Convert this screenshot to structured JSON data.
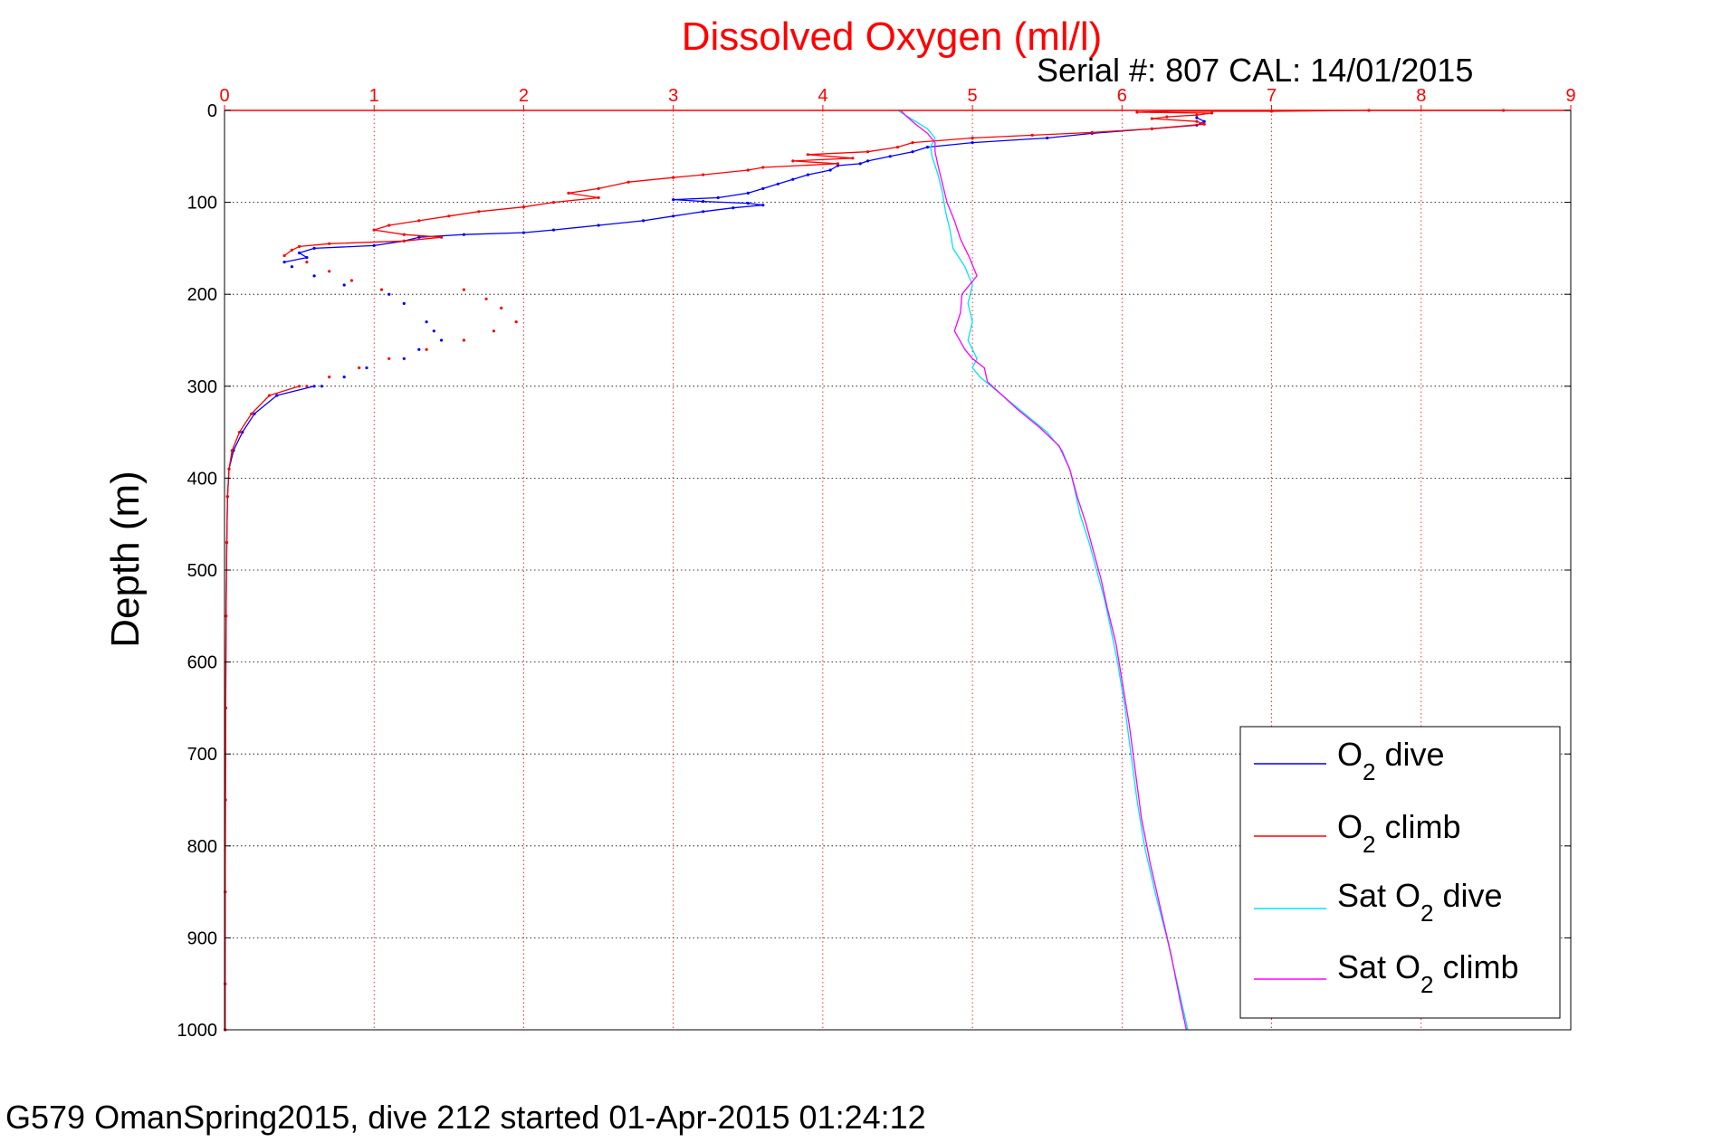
{
  "chart_data": {
    "type": "line",
    "title": "Dissolved Oxygen (ml/l)",
    "subtitle": "Serial #: 807  CAL: 14/01/2015",
    "ylabel": "Depth (m)",
    "xlabel": "",
    "xlim": [
      0,
      9
    ],
    "ylim": [
      0,
      1000
    ],
    "y_reversed": true,
    "x_axis_position": "top",
    "grid": true,
    "legend_position": "bottom-right",
    "x_ticks": [
      "0",
      "1",
      "2",
      "3",
      "4",
      "5",
      "6",
      "7",
      "8",
      "9"
    ],
    "y_ticks": [
      "0",
      "100",
      "200",
      "300",
      "400",
      "500",
      "600",
      "700",
      "800",
      "900",
      "1000"
    ],
    "legend": {
      "o2_dive": {
        "main": "O",
        "sub": "2",
        "rest": " dive"
      },
      "o2_climb": {
        "main": "O",
        "sub": "2",
        "rest": " climb"
      },
      "sat_dive": {
        "main": "Sat O",
        "sub": "2",
        "rest": " dive"
      },
      "sat_climb": {
        "main": "Sat O",
        "sub": "2",
        "rest": " climb"
      }
    },
    "series": [
      {
        "key": "o2_dive",
        "color": "#0000ff",
        "style": "line-marker",
        "points": [
          [
            6.5,
            8
          ],
          [
            6.55,
            12
          ],
          [
            6.5,
            16
          ],
          [
            6.2,
            20
          ],
          [
            5.8,
            25
          ],
          [
            5.5,
            30
          ],
          [
            5.0,
            35
          ],
          [
            4.7,
            40
          ],
          [
            4.6,
            45
          ],
          [
            4.45,
            50
          ],
          [
            4.3,
            55
          ],
          [
            4.25,
            58
          ],
          [
            4.1,
            60
          ],
          [
            4.05,
            65
          ],
          [
            3.9,
            70
          ],
          [
            3.8,
            75
          ],
          [
            3.7,
            80
          ],
          [
            3.6,
            85
          ],
          [
            3.5,
            90
          ],
          [
            3.3,
            95
          ],
          [
            3.0,
            97
          ],
          [
            3.2,
            99
          ],
          [
            3.5,
            101
          ],
          [
            3.6,
            103
          ],
          [
            3.4,
            106
          ],
          [
            3.2,
            110
          ],
          [
            3.0,
            115
          ],
          [
            2.8,
            120
          ],
          [
            2.5,
            125
          ],
          [
            2.2,
            130
          ],
          [
            2.0,
            133
          ],
          [
            1.6,
            135
          ],
          [
            1.3,
            138
          ],
          [
            1.2,
            142
          ],
          [
            1.0,
            147
          ],
          [
            0.6,
            150
          ],
          [
            0.5,
            155
          ],
          [
            0.55,
            160
          ],
          [
            0.4,
            165
          ]
        ]
      },
      {
        "key": "o2_dive_scatter",
        "color": "#0000ff",
        "style": "marker",
        "points": [
          [
            0.45,
            170
          ],
          [
            0.6,
            180
          ],
          [
            0.8,
            190
          ],
          [
            1.1,
            200
          ],
          [
            1.2,
            210
          ],
          [
            1.35,
            230
          ],
          [
            1.4,
            240
          ],
          [
            1.45,
            250
          ],
          [
            1.3,
            260
          ],
          [
            1.2,
            270
          ],
          [
            0.95,
            280
          ],
          [
            0.8,
            290
          ],
          [
            0.65,
            300
          ]
        ]
      },
      {
        "key": "o2_dive_deep",
        "color": "#0000ff",
        "style": "line-marker",
        "points": [
          [
            0.6,
            300
          ],
          [
            0.35,
            310
          ],
          [
            0.2,
            330
          ],
          [
            0.12,
            350
          ],
          [
            0.06,
            370
          ],
          [
            0.03,
            390
          ],
          [
            0.02,
            420
          ],
          [
            0.015,
            470
          ],
          [
            0.01,
            550
          ],
          [
            0.008,
            650
          ],
          [
            0.006,
            750
          ],
          [
            0.005,
            850
          ],
          [
            0.004,
            950
          ],
          [
            0.004,
            1000
          ]
        ]
      },
      {
        "key": "o2_climb",
        "color": "#ff0000",
        "style": "line-marker",
        "points": [
          [
            8.55,
            0
          ],
          [
            7.65,
            0
          ],
          [
            7.0,
            1
          ],
          [
            6.3,
            1
          ],
          [
            6.1,
            2
          ],
          [
            6.6,
            3
          ],
          [
            6.5,
            5
          ],
          [
            6.3,
            7
          ],
          [
            6.2,
            9
          ],
          [
            6.5,
            12
          ],
          [
            6.55,
            15
          ],
          [
            6.2,
            20
          ],
          [
            5.8,
            24
          ],
          [
            5.4,
            27
          ],
          [
            5.0,
            30
          ],
          [
            4.6,
            35
          ],
          [
            4.5,
            40
          ],
          [
            4.3,
            45
          ],
          [
            3.9,
            48
          ],
          [
            4.2,
            52
          ],
          [
            3.8,
            55
          ],
          [
            4.1,
            58
          ],
          [
            3.6,
            62
          ],
          [
            3.5,
            65
          ],
          [
            3.2,
            70
          ],
          [
            3.0,
            73
          ],
          [
            2.7,
            78
          ],
          [
            2.5,
            85
          ],
          [
            2.3,
            90
          ],
          [
            2.5,
            95
          ],
          [
            2.2,
            100
          ],
          [
            2.0,
            105
          ],
          [
            1.7,
            110
          ],
          [
            1.5,
            115
          ],
          [
            1.3,
            120
          ],
          [
            1.1,
            125
          ],
          [
            1.0,
            130
          ],
          [
            1.2,
            135
          ],
          [
            1.45,
            138
          ],
          [
            1.2,
            142
          ],
          [
            0.7,
            145
          ],
          [
            0.5,
            148
          ],
          [
            0.45,
            152
          ],
          [
            0.4,
            158
          ]
        ]
      },
      {
        "key": "o2_climb_scatter",
        "color": "#ff0000",
        "style": "marker",
        "points": [
          [
            0.55,
            165
          ],
          [
            0.7,
            175
          ],
          [
            0.85,
            185
          ],
          [
            1.05,
            195
          ],
          [
            1.6,
            195
          ],
          [
            1.75,
            205
          ],
          [
            1.85,
            215
          ],
          [
            1.95,
            230
          ],
          [
            1.8,
            240
          ],
          [
            1.6,
            250
          ],
          [
            1.35,
            260
          ],
          [
            1.1,
            270
          ],
          [
            0.9,
            280
          ],
          [
            0.7,
            290
          ],
          [
            0.55,
            300
          ]
        ]
      },
      {
        "key": "o2_climb_deep",
        "color": "#ff0000",
        "style": "line-marker",
        "points": [
          [
            0.5,
            300
          ],
          [
            0.3,
            310
          ],
          [
            0.18,
            330
          ],
          [
            0.1,
            350
          ],
          [
            0.05,
            370
          ],
          [
            0.03,
            390
          ],
          [
            0.02,
            420
          ],
          [
            0.015,
            470
          ],
          [
            0.01,
            550
          ],
          [
            0.008,
            650
          ],
          [
            0.006,
            750
          ],
          [
            0.005,
            850
          ],
          [
            0.004,
            950
          ],
          [
            0.004,
            1000
          ]
        ]
      },
      {
        "key": "sat_dive",
        "color": "#00e5ee",
        "style": "line",
        "points": [
          [
            4.5,
            0
          ],
          [
            4.55,
            5
          ],
          [
            4.6,
            10
          ],
          [
            4.7,
            20
          ],
          [
            4.75,
            30
          ],
          [
            4.72,
            40
          ],
          [
            4.73,
            50
          ],
          [
            4.77,
            70
          ],
          [
            4.8,
            90
          ],
          [
            4.82,
            110
          ],
          [
            4.85,
            130
          ],
          [
            4.87,
            150
          ],
          [
            4.95,
            170
          ],
          [
            5.0,
            190
          ],
          [
            4.97,
            210
          ],
          [
            5.0,
            230
          ],
          [
            4.97,
            250
          ],
          [
            5.03,
            270
          ],
          [
            5.0,
            280
          ],
          [
            5.05,
            290
          ],
          [
            5.2,
            310
          ],
          [
            5.35,
            330
          ],
          [
            5.5,
            350
          ],
          [
            5.6,
            370
          ],
          [
            5.65,
            390
          ],
          [
            5.68,
            410
          ],
          [
            5.72,
            440
          ],
          [
            5.78,
            470
          ],
          [
            5.83,
            500
          ],
          [
            5.88,
            530
          ],
          [
            5.92,
            560
          ],
          [
            5.97,
            600
          ],
          [
            6.02,
            650
          ],
          [
            6.06,
            700
          ],
          [
            6.1,
            750
          ],
          [
            6.15,
            800
          ],
          [
            6.22,
            850
          ],
          [
            6.3,
            900
          ],
          [
            6.37,
            950
          ],
          [
            6.44,
            1000
          ]
        ]
      },
      {
        "key": "sat_climb",
        "color": "#ff00ff",
        "style": "line",
        "points": [
          [
            4.52,
            0
          ],
          [
            4.55,
            5
          ],
          [
            4.62,
            15
          ],
          [
            4.7,
            25
          ],
          [
            4.75,
            35
          ],
          [
            4.75,
            45
          ],
          [
            4.77,
            60
          ],
          [
            4.8,
            80
          ],
          [
            4.83,
            100
          ],
          [
            4.88,
            120
          ],
          [
            4.92,
            140
          ],
          [
            4.98,
            160
          ],
          [
            5.03,
            180
          ],
          [
            4.93,
            200
          ],
          [
            4.92,
            220
          ],
          [
            4.88,
            240
          ],
          [
            4.95,
            260
          ],
          [
            5.0,
            270
          ],
          [
            5.08,
            280
          ],
          [
            5.1,
            295
          ],
          [
            5.2,
            310
          ],
          [
            5.3,
            325
          ],
          [
            5.45,
            345
          ],
          [
            5.58,
            365
          ],
          [
            5.65,
            390
          ],
          [
            5.7,
            420
          ],
          [
            5.76,
            450
          ],
          [
            5.81,
            480
          ],
          [
            5.86,
            510
          ],
          [
            5.9,
            540
          ],
          [
            5.96,
            580
          ],
          [
            6.0,
            620
          ],
          [
            6.05,
            670
          ],
          [
            6.09,
            720
          ],
          [
            6.13,
            770
          ],
          [
            6.19,
            820
          ],
          [
            6.26,
            870
          ],
          [
            6.33,
            920
          ],
          [
            6.39,
            970
          ],
          [
            6.43,
            1000
          ]
        ]
      }
    ]
  },
  "caption": "G579 OmanSpring2015, dive 212 started 01-Apr-2015 01:24:12"
}
